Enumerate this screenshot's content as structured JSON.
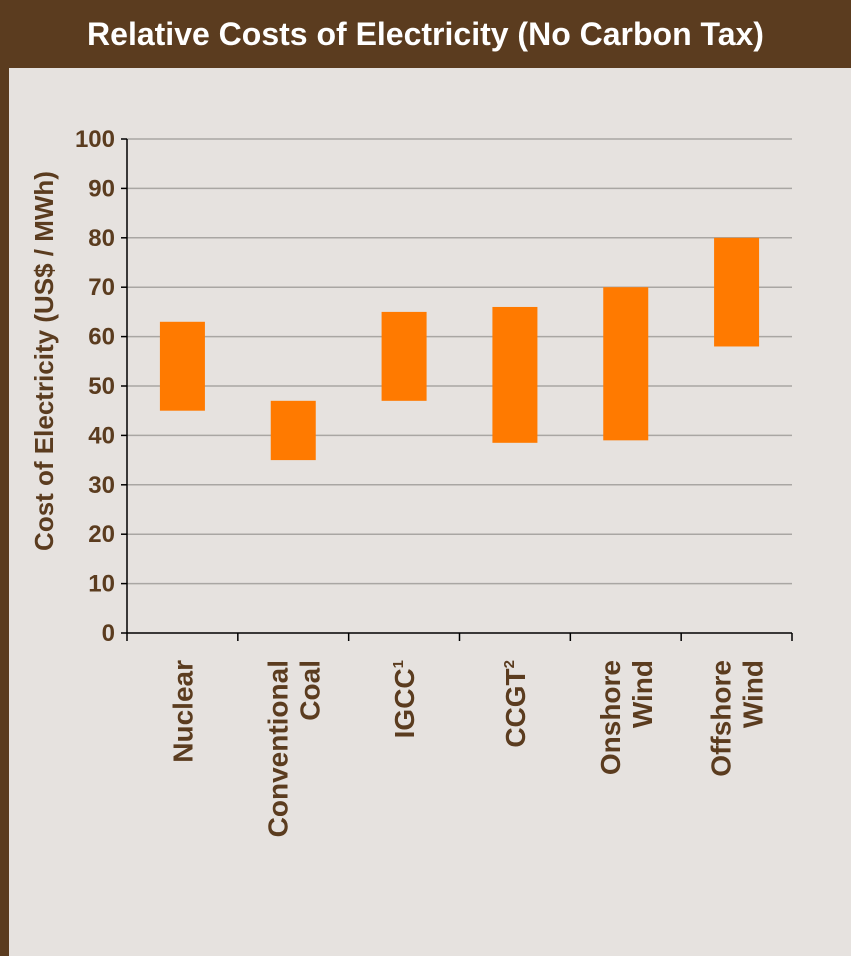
{
  "header": {
    "title": "Relative Costs of Electricity (No Carbon Tax)"
  },
  "colors": {
    "frame": "#5b3c1f",
    "panel": "#e6e2df",
    "bar": "#ff7a00",
    "grid": "#a9a6a3",
    "text": "#5b3c1f"
  },
  "chart_data": {
    "type": "bar",
    "title": "Relative Costs of Electricity (No Carbon Tax)",
    "ylabel": "Cost of Electricity (US$ / MWh)",
    "xlabel": "",
    "ylim": [
      0,
      100
    ],
    "yticks": [
      "0",
      "10",
      "20",
      "30",
      "40",
      "50",
      "60",
      "70",
      "80",
      "90",
      "100"
    ],
    "grid": true,
    "categories": [
      {
        "lines": [
          "Nuclear"
        ],
        "sup": ""
      },
      {
        "lines": [
          "Conventional",
          "Coal"
        ],
        "sup": ""
      },
      {
        "lines": [
          "IGCC"
        ],
        "sup": "1"
      },
      {
        "lines": [
          "CCGT"
        ],
        "sup": "2"
      },
      {
        "lines": [
          "Onshore",
          "Wind"
        ],
        "sup": ""
      },
      {
        "lines": [
          "Offshore",
          "Wind"
        ],
        "sup": ""
      }
    ],
    "series": [
      {
        "low": [
          45,
          35,
          47,
          38.5,
          39,
          58
        ],
        "high": [
          63,
          47,
          65,
          66,
          70,
          80
        ]
      }
    ]
  }
}
